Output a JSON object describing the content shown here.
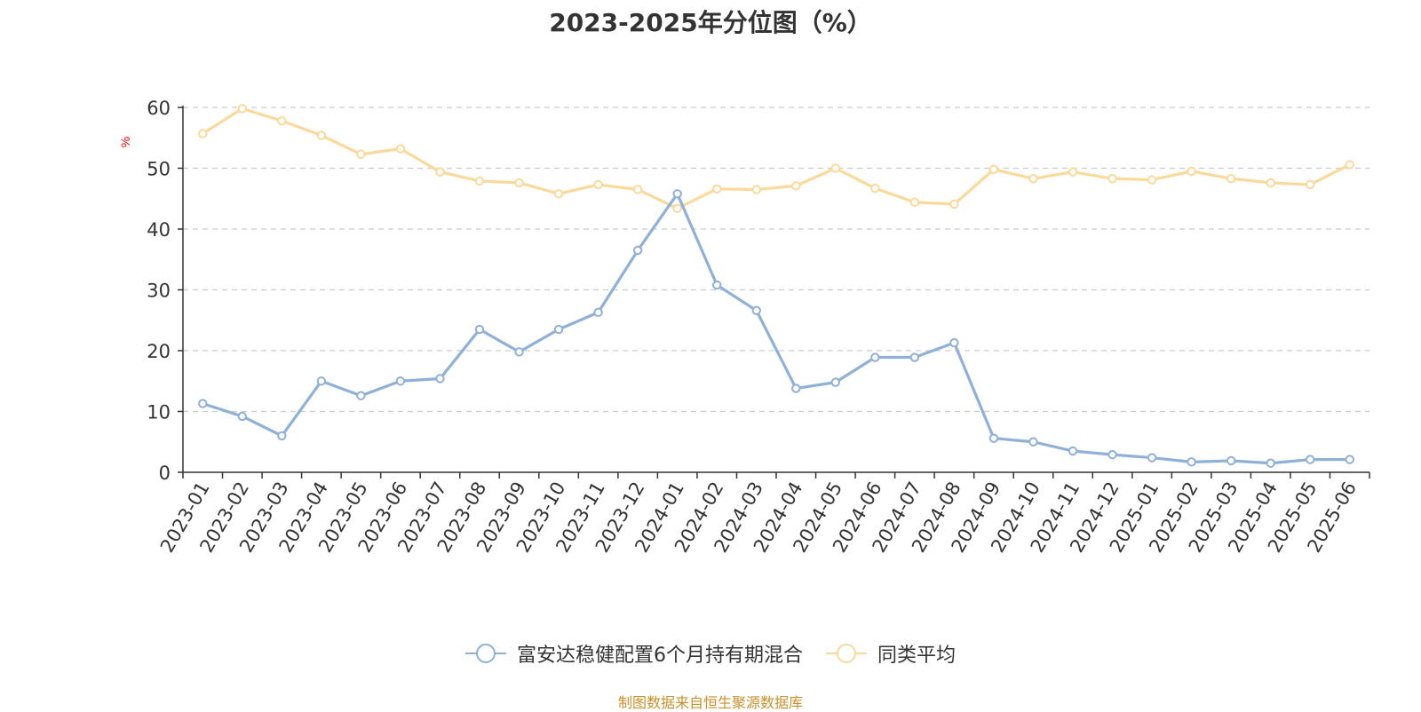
{
  "chart_data": {
    "type": "line",
    "title": "2023-2025年分位图（%）",
    "ylabel": "%",
    "ylim": [
      0,
      60
    ],
    "yticks": [
      0,
      10,
      20,
      30,
      40,
      50,
      60
    ],
    "grid": true,
    "legend_position": "bottom",
    "categories": [
      "2023-01",
      "2023-02",
      "2023-03",
      "2023-04",
      "2023-05",
      "2023-06",
      "2023-07",
      "2023-08",
      "2023-09",
      "2023-10",
      "2023-11",
      "2023-12",
      "2024-01",
      "2024-02",
      "2024-03",
      "2024-04",
      "2024-05",
      "2024-06",
      "2024-07",
      "2024-08",
      "2024-09",
      "2024-10",
      "2024-11",
      "2024-12",
      "2025-01",
      "2025-02",
      "2025-03",
      "2025-04",
      "2025-05",
      "2025-06"
    ],
    "series": [
      {
        "name": "富安达稳健配置6个月持有期混合",
        "color": "#8eb0d9",
        "values": [
          11.3,
          9.2,
          6.0,
          15.0,
          12.6,
          15.0,
          15.4,
          23.5,
          19.8,
          23.5,
          26.3,
          36.5,
          45.8,
          30.8,
          26.6,
          13.8,
          14.8,
          18.9,
          18.9,
          21.3,
          5.6,
          5.0,
          3.5,
          2.9,
          2.4,
          1.7,
          1.9,
          1.5,
          2.1,
          2.1
        ]
      },
      {
        "name": "同类平均",
        "color": "#fbd99b",
        "values": [
          55.7,
          59.8,
          57.8,
          55.4,
          52.3,
          53.2,
          49.4,
          47.9,
          47.6,
          45.8,
          47.3,
          46.5,
          43.4,
          46.6,
          46.5,
          47.1,
          50.0,
          46.7,
          44.4,
          44.1,
          49.8,
          48.3,
          49.4,
          48.3,
          48.1,
          49.5,
          48.3,
          47.6,
          47.3,
          50.6
        ]
      }
    ]
  },
  "source_note": "制图数据来自恒生聚源数据库"
}
